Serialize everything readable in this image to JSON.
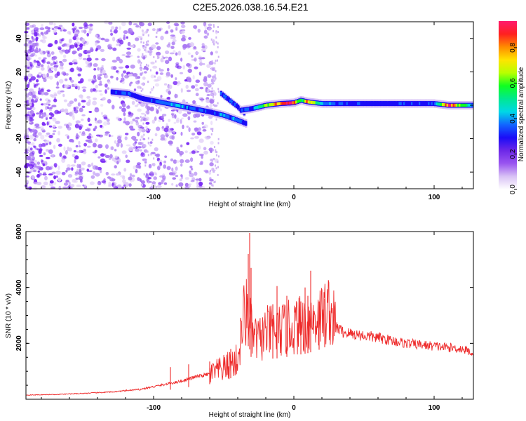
{
  "title": "C2E5.2026.038.16.54.E21",
  "colors": {
    "noise": "#7b2bf5",
    "snr_line": "#ee2b2b",
    "frame": "#000000"
  },
  "chart_data": [
    {
      "type": "heatmap",
      "name": "spectrogram",
      "xlabel": "Height of straight line (km)",
      "ylabel": "Frequency (Hz)",
      "xlim": [
        -191,
        128
      ],
      "ylim": [
        -50,
        50
      ],
      "xticks": [
        -100,
        0,
        100
      ],
      "xtick_labels": [
        "-100",
        "0",
        "100"
      ],
      "yticks": [
        -40,
        -20,
        0,
        20,
        40
      ],
      "ytick_labels": [
        "-40",
        "-20",
        "0",
        "20",
        "40"
      ],
      "colorbar": {
        "label": "Normalized spectral amplitude",
        "range": [
          0,
          0.95
        ],
        "ticks": [
          0,
          0.2,
          0.4,
          0.6,
          0.8
        ],
        "tick_labels": [
          "0.0",
          "0.2",
          "0.4",
          "0.6",
          "0.8"
        ],
        "colormap": [
          "#ffffff",
          "#d9c2f5",
          "#9a55f0",
          "#6d28e8",
          "#1b0cf7",
          "#1166ff",
          "#00d8e6",
          "#00e890",
          "#10ff20",
          "#b8ff00",
          "#ffe400",
          "#ff8c00",
          "#ff2020",
          "#ff1a6e"
        ]
      },
      "noise_region": {
        "x_range": [
          -191,
          -55
        ],
        "amplitude": 0.15
      },
      "upper_branch": {
        "x": [
          -130,
          -118,
          -108,
          -96,
          -84,
          -72,
          -60,
          -50,
          -40,
          -34
        ],
        "y": [
          8,
          7,
          4,
          2,
          0,
          -2,
          -4,
          -6,
          -9,
          -11
        ],
        "amplitude": [
          0.3,
          0.35,
          0.3,
          0.35,
          0.4,
          0.35,
          0.3,
          0.4,
          0.35,
          0.3
        ]
      },
      "lower_branch": {
        "x": [
          -52,
          -46,
          -40,
          -35
        ],
        "y": [
          7,
          3,
          -1,
          -5
        ],
        "amplitude": [
          0.3,
          0.35,
          0.3,
          0.3
        ]
      },
      "dc_line": {
        "x": [
          -38,
          -30,
          -20,
          -10,
          0,
          5,
          10,
          20,
          40,
          60,
          80,
          100,
          110,
          128
        ],
        "y": [
          -3,
          -2,
          0,
          1,
          1.5,
          3,
          2,
          1,
          1,
          1,
          1,
          1,
          0,
          0
        ],
        "amplitude": [
          0.3,
          0.35,
          0.6,
          0.85,
          0.85,
          0.5,
          0.8,
          0.4,
          0.3,
          0.3,
          0.3,
          0.3,
          0.9,
          0.35
        ]
      }
    },
    {
      "type": "line",
      "name": "snr",
      "xlabel": "Height of straight line (km)",
      "ylabel": "SNR (10 * v/v)",
      "xlim": [
        -191,
        128
      ],
      "ylim": [
        0,
        6000
      ],
      "xticks": [
        -100,
        0,
        100
      ],
      "xtick_labels": [
        "-100",
        "0",
        "100"
      ],
      "yticks": [
        2000,
        4000,
        6000
      ],
      "ytick_labels": [
        "2000",
        "4000",
        "6000"
      ],
      "series": [
        {
          "name": "SNR",
          "x": [
            -191,
            -170,
            -150,
            -130,
            -110,
            -100,
            -90,
            -80,
            -70,
            -60,
            -50,
            -40,
            -36,
            -32,
            -30,
            -25,
            -20,
            -10,
            0,
            10,
            20,
            25,
            30,
            35,
            40,
            60,
            80,
            100,
            120,
            128
          ],
          "y": [
            150,
            170,
            210,
            260,
            350,
            450,
            550,
            650,
            800,
            900,
            1100,
            1400,
            2900,
            3200,
            2300,
            2100,
            2400,
            2450,
            2600,
            2750,
            3000,
            3250,
            2600,
            2400,
            2350,
            2200,
            2000,
            1900,
            1800,
            1650
          ]
        }
      ],
      "spikes": {
        "x": [
          -31.5,
          -32.5,
          -30.5,
          -15,
          -12,
          -5,
          5,
          8,
          10,
          12,
          18,
          22,
          -45,
          -60,
          -75,
          -88
        ],
        "y": [
          5950,
          5200,
          4700,
          3400,
          4050,
          3700,
          3500,
          4000,
          3700,
          4600,
          3500,
          3600,
          1800,
          1350,
          1250,
          1150
        ]
      }
    }
  ]
}
